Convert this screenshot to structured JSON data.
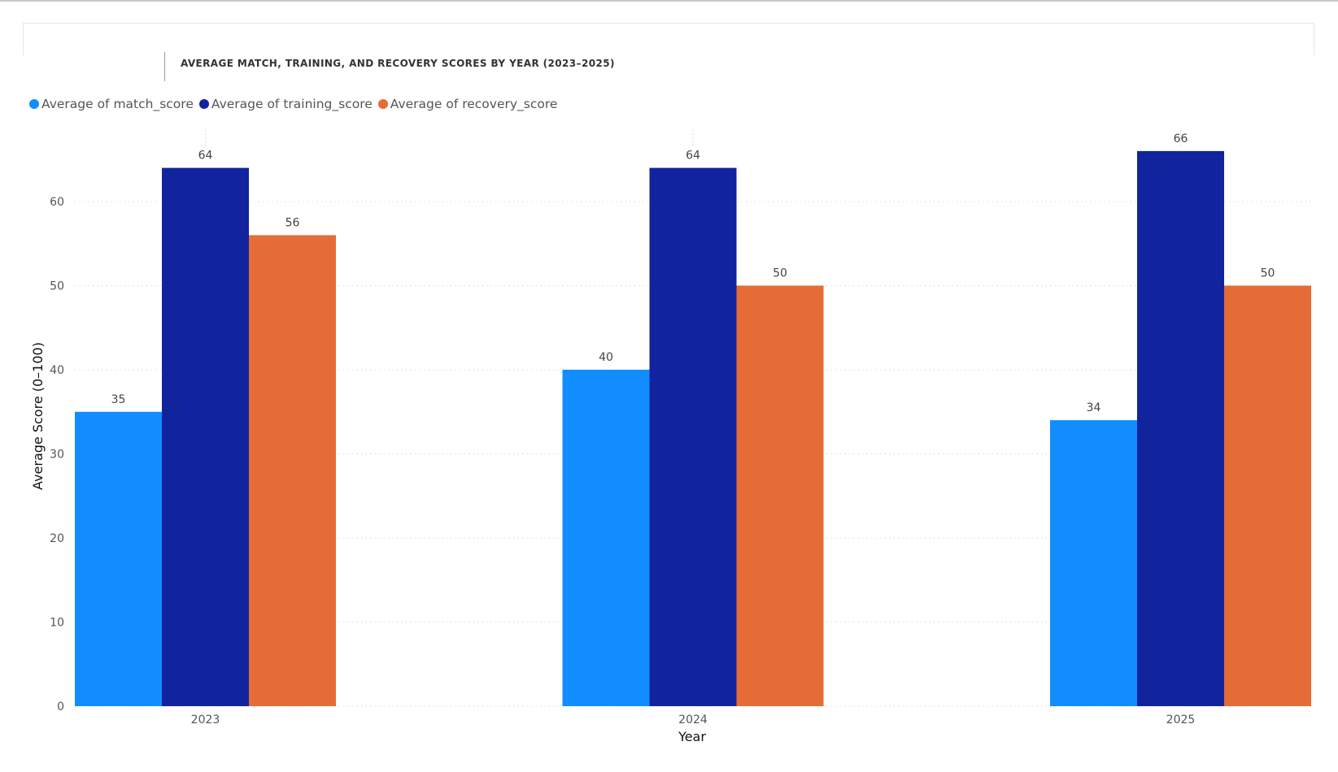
{
  "chart_data": {
    "type": "bar",
    "title": "AVERAGE MATCH, TRAINING, AND RECOVERY SCORES BY YEAR (2023–2025)",
    "xlabel": "Year",
    "ylabel": "Average Score (0–100)",
    "categories": [
      "2023",
      "2024",
      "2025"
    ],
    "series": [
      {
        "name": "Average of match_score",
        "color": "#118dff",
        "values": [
          35,
          40,
          34
        ]
      },
      {
        "name": "Average of training_score",
        "color": "#12239e",
        "values": [
          64,
          64,
          66
        ]
      },
      {
        "name": "Average of recovery_score",
        "color": "#e66c37",
        "values": [
          56,
          50,
          50
        ]
      }
    ],
    "data_labels": [
      [
        "35",
        "40",
        "34"
      ],
      [
        "64",
        "64",
        "66"
      ],
      [
        "56",
        "50",
        "50"
      ]
    ],
    "ylim": [
      0,
      67
    ],
    "yticks": [
      0,
      10,
      20,
      30,
      40,
      50,
      60
    ],
    "grid": true,
    "legend_position": "top-left"
  }
}
